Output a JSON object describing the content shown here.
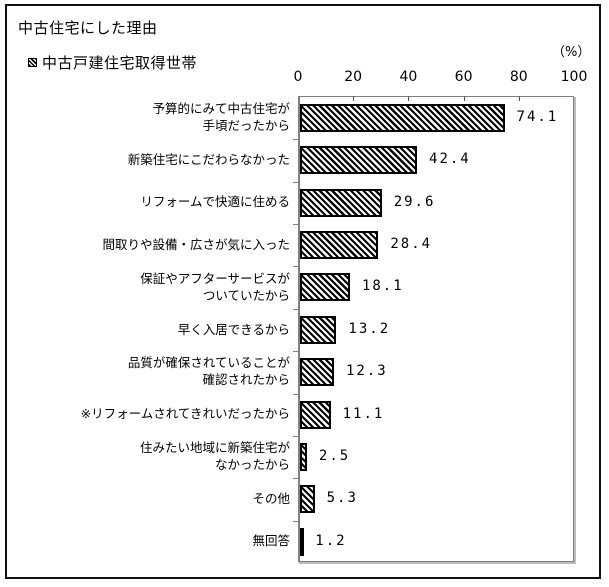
{
  "chart_data": {
    "type": "bar",
    "orientation": "horizontal",
    "title": "中古住宅にした理由",
    "legend": [
      "中古戸建住宅取得世帯"
    ],
    "unit_label": "（%）",
    "xlim": [
      0,
      100
    ],
    "xticks": [
      0,
      20,
      40,
      60,
      80,
      100
    ],
    "grid": false,
    "legend_position": "top-left",
    "categories": [
      "予算的にみて中古住宅が手頃だったから",
      "新築住宅にこだわらなかった",
      "リフォームで快適に住める",
      "間取りや設備・広さが気に入った",
      "保証やアフターサービスがついていたから",
      "早く入居できるから",
      "品質が確保されていることが確認されたから",
      "※リフォームされてきれいだったから",
      "住みたい地域に新築住宅がなかったから",
      "その他",
      "無回答"
    ],
    "series": [
      {
        "name": "中古戸建住宅取得世帯",
        "pattern": "diagonal-hatch",
        "values": [
          74.1,
          42.4,
          29.6,
          28.4,
          18.1,
          13.2,
          12.3,
          11.1,
          2.5,
          5.3,
          1.2
        ]
      }
    ]
  },
  "labels": {
    "title": "中古住宅にした理由",
    "legend": "中古戸建住宅取得世帯",
    "unit": "（%）",
    "ticks": [
      "0",
      "20",
      "40",
      "60",
      "80",
      "100"
    ],
    "rows": [
      {
        "lines": [
          "予算的にみて中古住宅が",
          "手頃だったから"
        ],
        "value": 74.1,
        "value_label": "74.1"
      },
      {
        "lines": [
          "新築住宅にこだわらなかった"
        ],
        "value": 42.4,
        "value_label": "42.4"
      },
      {
        "lines": [
          "リフォームで快適に住める"
        ],
        "value": 29.6,
        "value_label": "29.6"
      },
      {
        "lines": [
          "間取りや設備・広さが気に入った"
        ],
        "value": 28.4,
        "value_label": "28.4"
      },
      {
        "lines": [
          "保証やアフターサービスが",
          "ついていたから"
        ],
        "value": 18.1,
        "value_label": "18.1"
      },
      {
        "lines": [
          "早く入居できるから"
        ],
        "value": 13.2,
        "value_label": "13.2"
      },
      {
        "lines": [
          "品質が確保されていることが",
          "確認されたから"
        ],
        "value": 12.3,
        "value_label": "12.3"
      },
      {
        "lines": [
          "※リフォームされてきれいだったから"
        ],
        "value": 11.1,
        "value_label": "11.1"
      },
      {
        "lines": [
          "住みたい地域に新築住宅が",
          "なかったから"
        ],
        "value": 2.5,
        "value_label": "2.5"
      },
      {
        "lines": [
          "その他"
        ],
        "value": 5.3,
        "value_label": "5.3"
      },
      {
        "lines": [
          "無回答"
        ],
        "value": 1.2,
        "value_label": "1.2"
      }
    ]
  }
}
